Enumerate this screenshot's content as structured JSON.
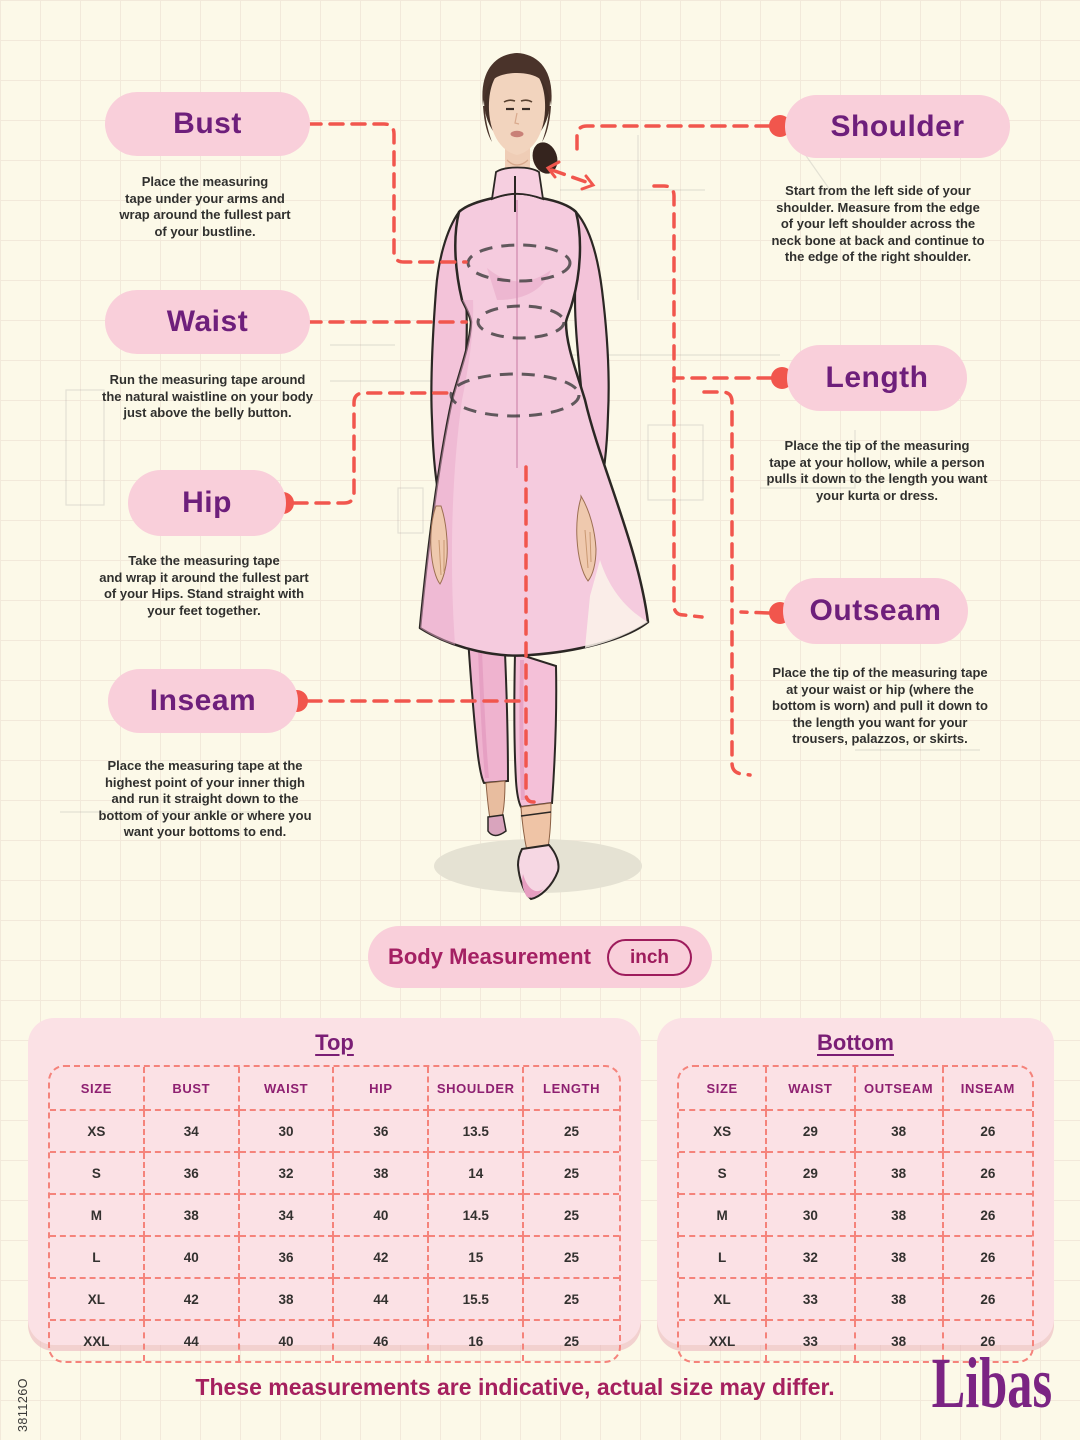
{
  "page": {
    "sku": "381126O",
    "footer_note": "These measurements are indicative, actual size may differ.",
    "brand": "Libas"
  },
  "colors": {
    "background_cream": "#FCF9E8",
    "pill_pink": "#F9CFDA",
    "label_purple": "#6E1F7B",
    "connector_coral": "#F1564D",
    "table_pink": "#FBE1E5",
    "table_border_coral": "#F5837B",
    "heading_magenta": "#A42063",
    "footer_magenta": "#A5205E",
    "brand_purple": "#7B2483"
  },
  "unit_bar": {
    "label": "Body Measurement",
    "unit": "inch"
  },
  "labels": {
    "bust": {
      "title": "Bust",
      "desc": [
        "Place the measuring",
        "tape under your arms and",
        "wrap around the fullest part",
        "of your bustline."
      ]
    },
    "waist": {
      "title": "Waist",
      "desc": [
        "Run the measuring tape around",
        "the natural waistline on your body",
        "just above the belly button."
      ]
    },
    "hip": {
      "title": "Hip",
      "desc": [
        "Take the measuring tape",
        "and wrap it around the fullest part",
        "of your Hips. Stand straight with",
        "your feet together."
      ]
    },
    "inseam": {
      "title": "Inseam",
      "desc": [
        "Place the measuring tape at the",
        "highest point of your inner thigh",
        "and run it straight down to the",
        "bottom of your ankle or where you",
        "want your bottoms to end."
      ]
    },
    "shoulder": {
      "title": "Shoulder",
      "desc": [
        "Start from the left side of your",
        "shoulder. Measure from the edge",
        "of your left shoulder across the",
        "neck bone at back and continue to",
        "the edge of the right shoulder."
      ]
    },
    "length": {
      "title": "Length",
      "desc": [
        "Place the tip of the measuring",
        "tape at your hollow, while a person",
        "pulls it down to the length you want",
        "your kurta or dress."
      ]
    },
    "outseam": {
      "title": "Outseam",
      "desc": [
        "Place the tip of the measuring tape",
        "at your waist or hip (where the",
        "bottom is worn) and pull it down to",
        "the length you want for your",
        "trousers, palazzos, or skirts."
      ]
    }
  },
  "tables": {
    "top": {
      "title": "Top",
      "columns": [
        "SIZE",
        "BUST",
        "WAIST",
        "HIP",
        "SHOULDER",
        "LENGTH"
      ],
      "rows": [
        [
          "XS",
          "34",
          "30",
          "36",
          "13.5",
          "25"
        ],
        [
          "S",
          "36",
          "32",
          "38",
          "14",
          "25"
        ],
        [
          "M",
          "38",
          "34",
          "40",
          "14.5",
          "25"
        ],
        [
          "L",
          "40",
          "36",
          "42",
          "15",
          "25"
        ],
        [
          "XL",
          "42",
          "38",
          "44",
          "15.5",
          "25"
        ],
        [
          "XXL",
          "44",
          "40",
          "46",
          "16",
          "25"
        ]
      ]
    },
    "bottom": {
      "title": "Bottom",
      "columns": [
        "SIZE",
        "WAIST",
        "OUTSEAM",
        "INSEAM"
      ],
      "rows": [
        [
          "XS",
          "29",
          "38",
          "26"
        ],
        [
          "S",
          "29",
          "38",
          "26"
        ],
        [
          "M",
          "30",
          "38",
          "26"
        ],
        [
          "L",
          "32",
          "38",
          "26"
        ],
        [
          "XL",
          "33",
          "38",
          "26"
        ],
        [
          "XXL",
          "33",
          "38",
          "26"
        ]
      ]
    }
  }
}
